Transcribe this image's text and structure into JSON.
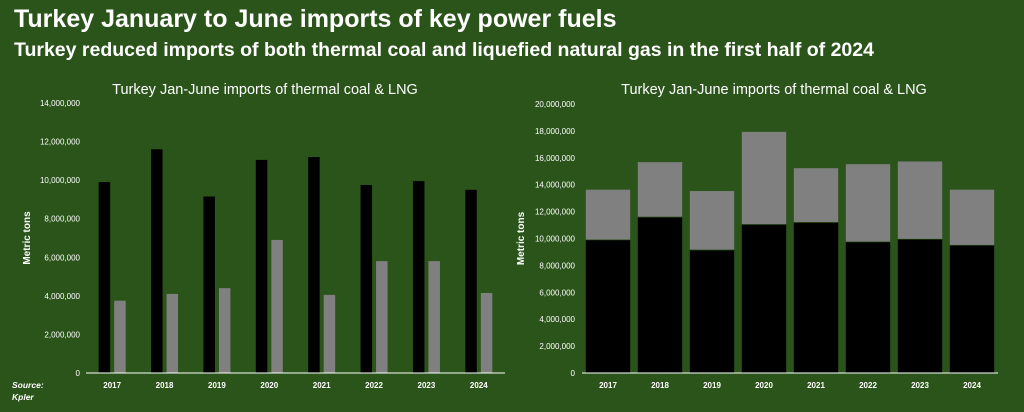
{
  "page": {
    "title": "Turkey January to June imports of key power fuels",
    "subtitle": "Turkey reduced imports of both thermal coal and liquefied natural gas in the first half of 2024",
    "source_line1": "Source:",
    "source_line2": "Kpler"
  },
  "colors": {
    "background": "#2a5419",
    "coal": "#000000",
    "lng": "#808080",
    "axis": "#ffffff"
  },
  "chart_data": [
    {
      "type": "bar",
      "title": "Turkey Jan-June imports of thermal coal & LNG",
      "ylabel": "Metric tons",
      "xlabel": "",
      "categories": [
        "2017",
        "2018",
        "2019",
        "2020",
        "2021",
        "2022",
        "2023",
        "2024"
      ],
      "series": [
        {
          "key": "coal",
          "values": [
            9900000,
            11600000,
            9150000,
            11050000,
            11200000,
            9750000,
            9950000,
            9500000
          ]
        },
        {
          "key": "lng",
          "values": [
            3750000,
            4100000,
            4400000,
            6900000,
            4050000,
            5800000,
            5800000,
            4150000
          ]
        }
      ],
      "ylim": [
        0,
        14000000
      ],
      "yticks": [
        0,
        2000000,
        4000000,
        6000000,
        8000000,
        10000000,
        12000000,
        14000000
      ],
      "ytick_labels": [
        "0",
        "2,000,000",
        "4,000,000",
        "6,000,000",
        "8,000,000",
        "10,000,000",
        "12,000,000",
        "14,000,000"
      ],
      "grid": false,
      "legend": "none"
    },
    {
      "type": "bar",
      "stacked": true,
      "title": "Turkey Jan-June imports of thermal coal & LNG",
      "ylabel": "Metric tons",
      "xlabel": "",
      "categories": [
        "2017",
        "2018",
        "2019",
        "2020",
        "2021",
        "2022",
        "2023",
        "2024"
      ],
      "series": [
        {
          "key": "coal",
          "values": [
            9900000,
            11600000,
            9150000,
            11050000,
            11200000,
            9750000,
            9950000,
            9500000
          ]
        },
        {
          "key": "lng",
          "values": [
            3750000,
            4100000,
            4400000,
            6900000,
            4050000,
            5800000,
            5800000,
            4150000
          ]
        }
      ],
      "ylim": [
        0,
        20000000
      ],
      "yticks": [
        0,
        2000000,
        4000000,
        6000000,
        8000000,
        10000000,
        12000000,
        14000000,
        16000000,
        18000000,
        20000000
      ],
      "ytick_labels": [
        "0",
        "2,000,000",
        "4,000,000",
        "6,000,000",
        "8,000,000",
        "10,000,000",
        "12,000,000",
        "14,000,000",
        "16,000,000",
        "18,000,000",
        "20,000,000"
      ],
      "grid": false,
      "legend": "none"
    }
  ]
}
